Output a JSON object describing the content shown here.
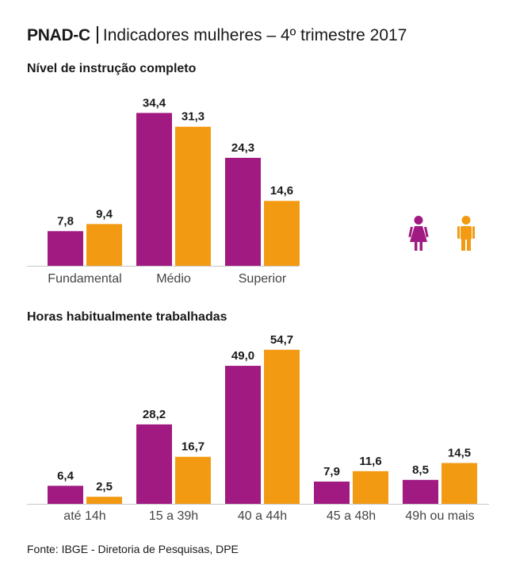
{
  "header": {
    "brand": "PNAD-C",
    "subtitle": "Indicadores mulheres – 4º trimestre 2017"
  },
  "colors": {
    "women": "#a01a82",
    "men": "#f39a13",
    "axis": "#c8c8c8"
  },
  "legend": {
    "women_icon": "woman-icon",
    "men_icon": "man-icon"
  },
  "chart_data": [
    {
      "type": "bar",
      "title": "Nível de instrução completo",
      "categories": [
        "Fundamental",
        "Médio",
        "Superior"
      ],
      "series": [
        {
          "name": "Mulheres",
          "values": [
            7.8,
            34.4,
            24.3
          ],
          "labels": [
            "7,8",
            "34,4",
            "24,3"
          ]
        },
        {
          "name": "Homens",
          "values": [
            9.4,
            31.3,
            14.6
          ],
          "labels": [
            "9,4",
            "31,3",
            "14,6"
          ]
        }
      ]
    },
    {
      "type": "bar",
      "title": "Horas habitualmente trabalhadas",
      "categories": [
        "até 14h",
        "15 a 39h",
        "40 a 44h",
        "45 a 48h",
        "49h ou mais"
      ],
      "series": [
        {
          "name": "Mulheres",
          "values": [
            6.4,
            28.2,
            49.0,
            7.9,
            8.5
          ],
          "labels": [
            "6,4",
            "28,2",
            "49,0",
            "7,9",
            "8,5"
          ]
        },
        {
          "name": "Homens",
          "values": [
            2.5,
            16.7,
            54.7,
            11.6,
            14.5
          ],
          "labels": [
            "2,5",
            "16,7",
            "54,7",
            "11,6",
            "14,5"
          ]
        }
      ]
    }
  ],
  "footer": {
    "source": "Fonte: IBGE - Diretoria de Pesquisas, DPE"
  }
}
